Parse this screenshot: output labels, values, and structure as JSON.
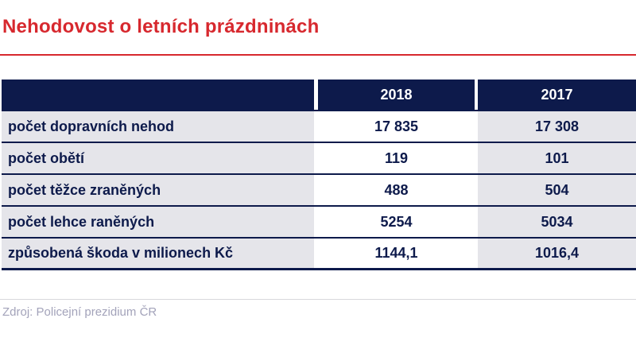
{
  "title": "Nehodovost o letních prázdninách",
  "footer": {
    "source": "Zdroj: Policejní prezidium ČR"
  },
  "colors": {
    "accent_red": "#d7282e",
    "header_navy": "#0d1a4b",
    "row_gray": "#e5e5ea",
    "source_gray": "#a3a3ba",
    "separator_gray": "#d8d8dc"
  },
  "chart_data": {
    "type": "table",
    "title": "Nehodovost o letních prázdninách",
    "columns": [
      "2018",
      "2017"
    ],
    "rows": [
      {
        "label": "počet dopravních nehod",
        "values": [
          "17 835",
          "17 308"
        ],
        "numeric": [
          17835,
          17308
        ]
      },
      {
        "label": "počet obětí",
        "values": [
          "119",
          "101"
        ],
        "numeric": [
          119,
          101
        ]
      },
      {
        "label": "počet těžce zraněných",
        "values": [
          "488",
          "504"
        ],
        "numeric": [
          488,
          504
        ]
      },
      {
        "label": "počet lehce raněných",
        "values": [
          "5254",
          "5034"
        ],
        "numeric": [
          5254,
          5034
        ]
      },
      {
        "label": "způsobená škoda v milionech Kč",
        "values": [
          "1144,1",
          "1016,4"
        ],
        "numeric": [
          1144.1,
          1016.4
        ]
      }
    ],
    "source": "Zdroj: Policejní prezidium ČR",
    "layout": {
      "label_column_bg": "gray",
      "col_2018_bg": "white",
      "col_2017_bg": "gray",
      "row_separators": "navy"
    }
  }
}
